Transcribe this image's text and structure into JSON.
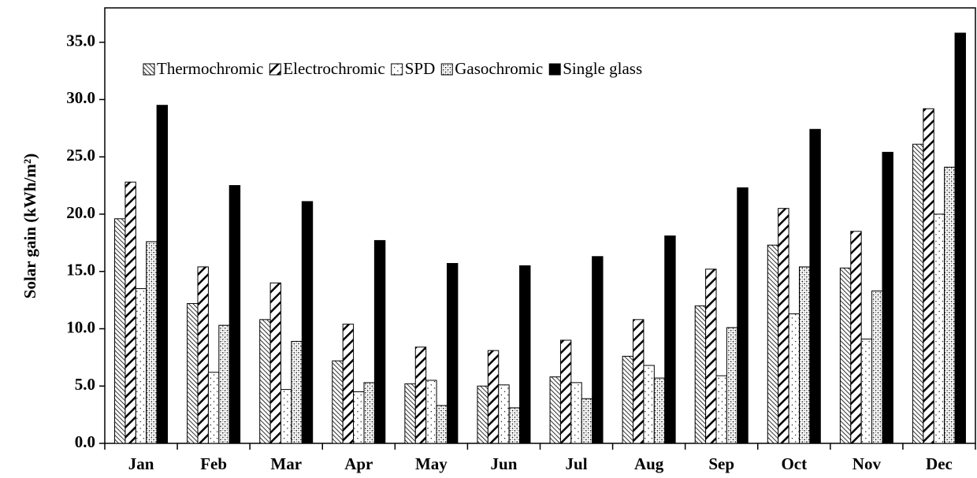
{
  "chart_data": {
    "type": "bar",
    "y_label": "Solar gain (kWh/m²)",
    "categories": [
      "Jan",
      "Feb",
      "Mar",
      "Apr",
      "May",
      "Jun",
      "Jul",
      "Aug",
      "Sep",
      "Oct",
      "Nov",
      "Dec"
    ],
    "series": [
      {
        "name": "Thermochromic",
        "color": "#000000",
        "pattern": "fine-hatch",
        "values": [
          19.6,
          12.2,
          10.8,
          7.2,
          5.2,
          5.0,
          5.8,
          7.6,
          12.0,
          17.3,
          15.3,
          26.1
        ]
      },
      {
        "name": "Electrochromic",
        "color": "#000000",
        "pattern": "wide-stripes",
        "values": [
          22.8,
          15.4,
          14.0,
          10.4,
          8.4,
          8.1,
          9.0,
          10.8,
          15.2,
          20.5,
          18.5,
          29.2
        ]
      },
      {
        "name": "SPD",
        "color": "#000000",
        "pattern": "sparse-dots",
        "values": [
          13.5,
          6.2,
          4.7,
          4.5,
          5.5,
          5.1,
          5.3,
          6.8,
          5.9,
          11.3,
          9.1,
          20.0
        ]
      },
      {
        "name": "Gasochromic",
        "color": "#000000",
        "pattern": "cross-dots",
        "values": [
          17.6,
          10.3,
          8.9,
          5.3,
          3.3,
          3.1,
          3.9,
          5.7,
          10.1,
          15.4,
          13.3,
          24.1
        ]
      },
      {
        "name": "Single glass",
        "color": "#000000",
        "pattern": "solid",
        "values": [
          29.5,
          22.5,
          21.1,
          17.7,
          15.7,
          15.5,
          16.3,
          18.1,
          22.3,
          27.4,
          25.4,
          35.8
        ]
      }
    ],
    "ylim": [
      0,
      38
    ],
    "yticks": [
      {
        "value": 0,
        "label": "0.0"
      },
      {
        "value": 5,
        "label": "5.0"
      },
      {
        "value": 10,
        "label": "10.0"
      },
      {
        "value": 15,
        "label": "15.0"
      },
      {
        "value": 20,
        "label": "20.0"
      },
      {
        "value": 25,
        "label": "25.0"
      },
      {
        "value": 30,
        "label": "30.0"
      },
      {
        "value": 35,
        "label": "35.0"
      }
    ],
    "grid": false,
    "legend": "top"
  }
}
